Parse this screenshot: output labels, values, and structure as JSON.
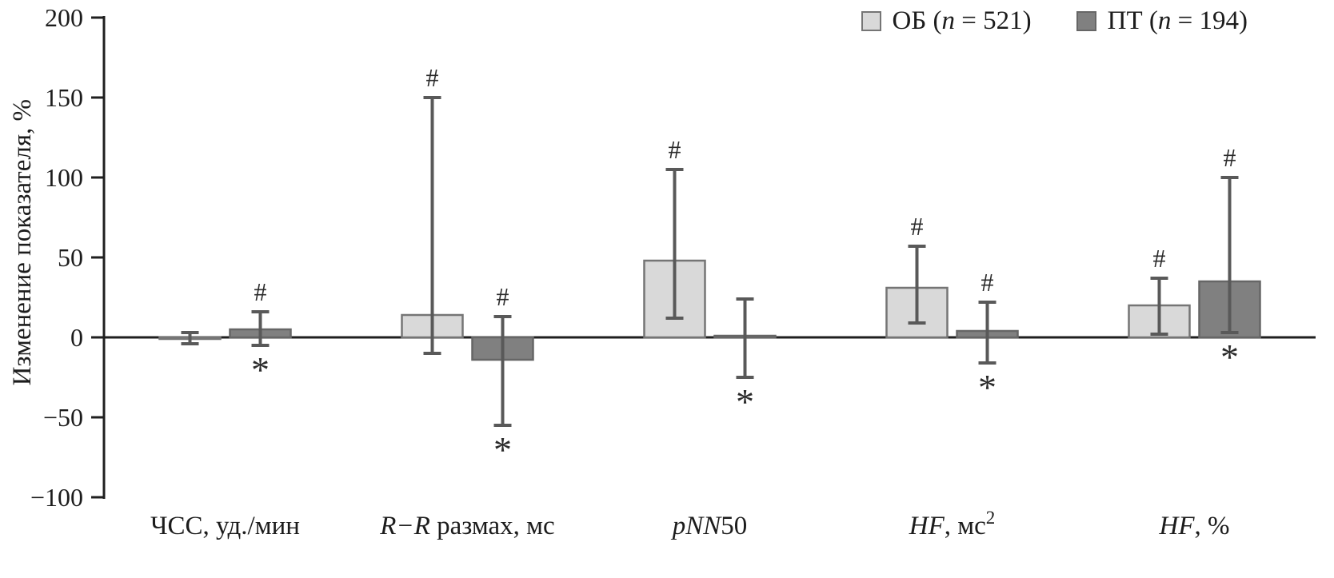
{
  "chart_data": {
    "type": "bar",
    "title": "",
    "xlabel": "",
    "ylabel": "Изменение показателя, %",
    "ylim": [
      -100,
      200
    ],
    "yticks": [
      200,
      150,
      100,
      50,
      0,
      -50,
      -100
    ],
    "grid": false,
    "legend_position": "top-right",
    "categories": [
      "ЧСС, уд./мин",
      "R−R размах, мс",
      "pNN50",
      "HF, мс²",
      "HF, %"
    ],
    "categories_rich": [
      {
        "parts": [
          {
            "t": "ЧСС, уд./мин"
          }
        ]
      },
      {
        "parts": [
          {
            "t": "R−R",
            "i": true
          },
          {
            "t": " размах, мс"
          }
        ]
      },
      {
        "parts": [
          {
            "t": "pNN",
            "i": true
          },
          {
            "t": "50"
          }
        ]
      },
      {
        "parts": [
          {
            "t": "HF",
            "i": true
          },
          {
            "t": ", мс"
          },
          {
            "t": "2",
            "sup": true
          }
        ]
      },
      {
        "parts": [
          {
            "t": "HF",
            "i": true
          },
          {
            "t": ", %"
          }
        ]
      }
    ],
    "series": [
      {
        "name": "ОБ (n = 521)",
        "key": "ob",
        "color": "#d9d9d9",
        "border": "#757575",
        "values": [
          -1,
          14,
          48,
          31,
          20
        ],
        "err_low": [
          -4,
          -10,
          12,
          9,
          2
        ],
        "err_high": [
          3,
          150,
          105,
          57,
          37
        ],
        "annotations_above": [
          "",
          "#",
          "#",
          "#",
          "#"
        ],
        "annotations_below": [
          "",
          "",
          "",
          "",
          ""
        ]
      },
      {
        "name": "ПТ (n = 194)",
        "key": "pt",
        "color": "#808080",
        "border": "#666666",
        "values": [
          5,
          -14,
          1,
          4,
          35
        ],
        "err_low": [
          -5,
          -55,
          -25,
          -16,
          3
        ],
        "err_high": [
          16,
          13,
          24,
          22,
          100
        ],
        "annotations_above": [
          "#",
          "#",
          "",
          "#",
          "#"
        ],
        "annotations_below": [
          "*",
          "*",
          "*",
          "*",
          "*"
        ]
      }
    ],
    "error_bar_color": "#595959",
    "axis_color": "#1f1f1f"
  },
  "legend": {
    "items": [
      {
        "prefix": "ОБ (",
        "nvar": "n",
        "rest": " = 521)"
      },
      {
        "prefix": "ПТ (",
        "nvar": "n",
        "rest": " = 194)"
      }
    ]
  }
}
